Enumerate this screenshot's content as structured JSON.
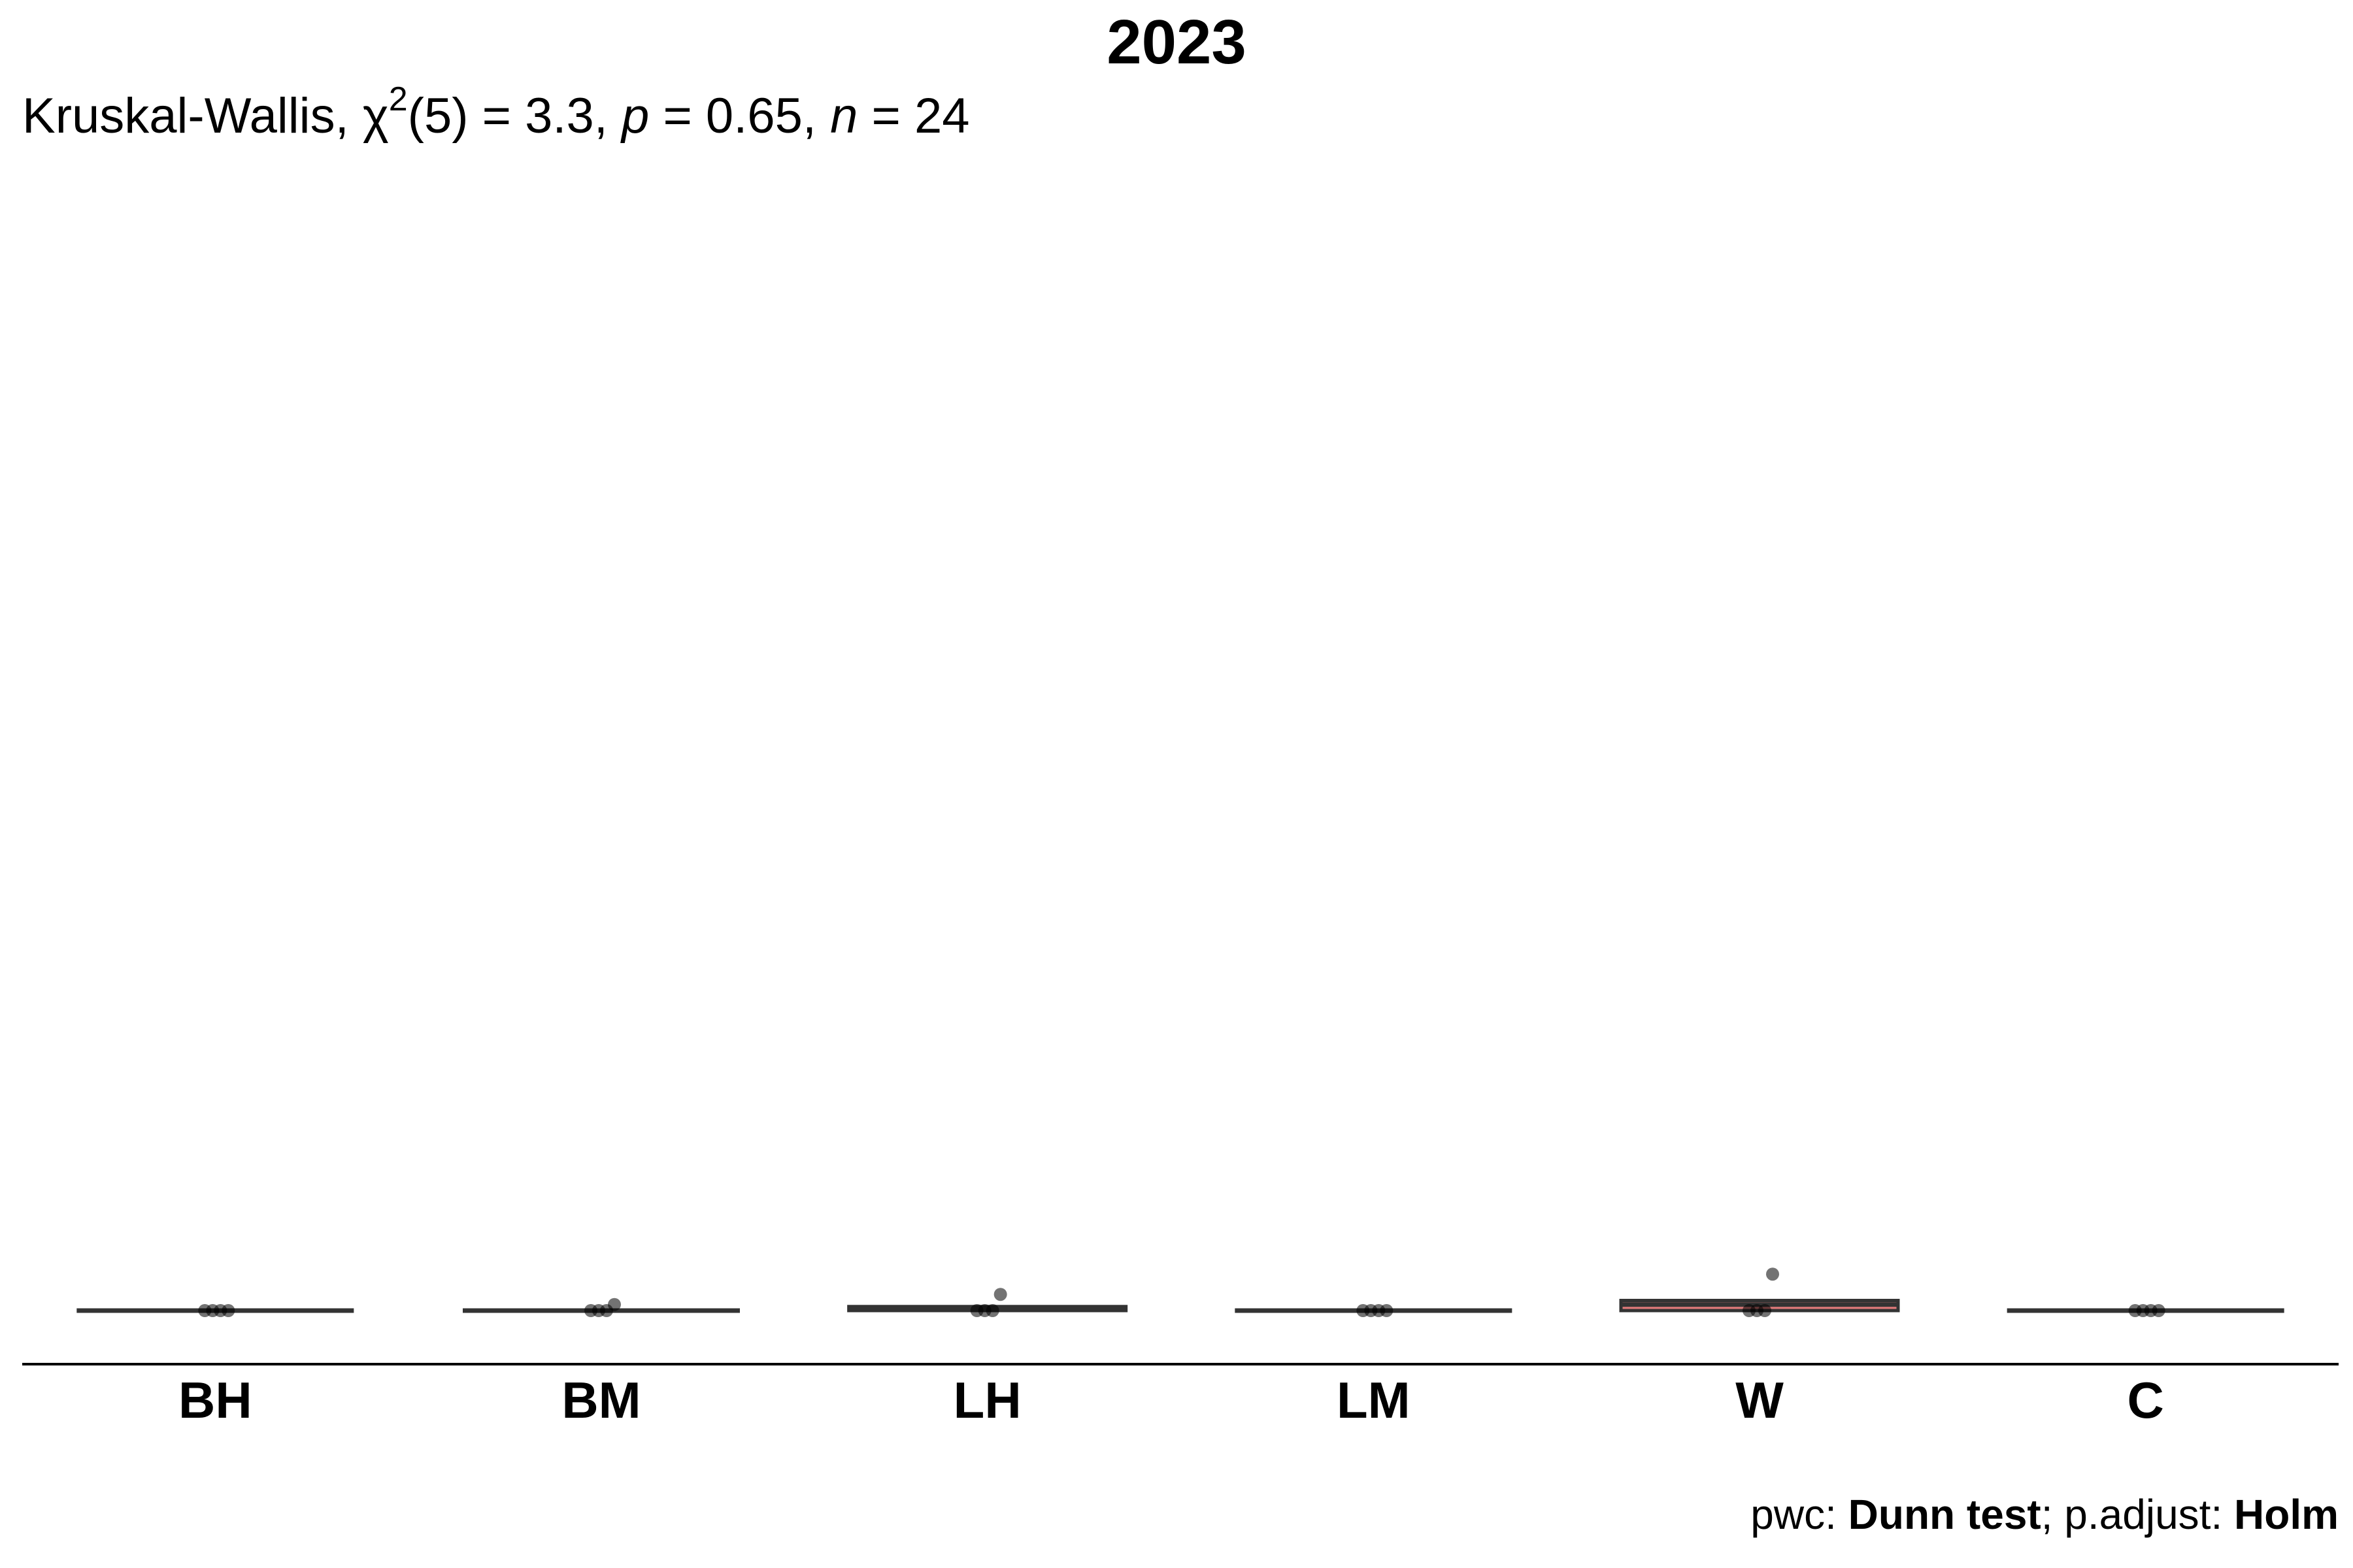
{
  "chart_data": {
    "type": "box",
    "title": "2023",
    "subtitle": {
      "test": "Kruskal-Wallis,",
      "chi_symbol": "χ",
      "chi_exp": "2",
      "df": "(5) = 3.3,",
      "p_label": "p",
      "p_value": "= 0.65,",
      "n_label": "n",
      "n_value": "= 24"
    },
    "caption": {
      "pwc_label": "pwc: ",
      "pwc_value": "Dunn test",
      "sep": "; p.adjust: ",
      "adjust_value": "Holm"
    },
    "ylim": [
      0,
      30
    ],
    "xlabel": "",
    "ylabel": "",
    "grid": false,
    "highlight_color": "#e07a7a",
    "box_color": "#333333",
    "categories": [
      "BH",
      "BM",
      "LH",
      "LM",
      "W",
      "C"
    ],
    "boxes": [
      {
        "category": "BH",
        "q1": 0,
        "median": 0,
        "q3": 0,
        "points": [
          0,
          0,
          0,
          0
        ]
      },
      {
        "category": "BM",
        "q1": 0,
        "median": 0,
        "q3": 0,
        "points": [
          0,
          0,
          0,
          0.15
        ]
      },
      {
        "category": "LH",
        "q1": 0,
        "median": 0.03,
        "q3": 0.1,
        "points": [
          0,
          0,
          0,
          0.4
        ]
      },
      {
        "category": "LM",
        "q1": 0,
        "median": 0,
        "q3": 0,
        "points": [
          0,
          0,
          0,
          0
        ]
      },
      {
        "category": "W",
        "q1": 0,
        "median": 0.15,
        "q3": 0.25,
        "points": [
          0,
          0,
          0,
          0.9
        ]
      },
      {
        "category": "C",
        "q1": 0,
        "median": 0,
        "q3": 0,
        "points": [
          0,
          0,
          0,
          0
        ]
      }
    ]
  }
}
